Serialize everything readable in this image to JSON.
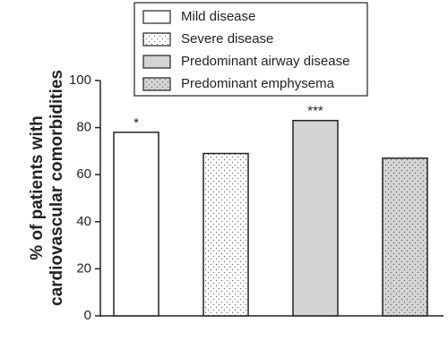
{
  "chart_data": {
    "type": "bar",
    "ylabel": [
      "% of patients with",
      "cardiovascular comorbidities"
    ],
    "categories": [
      "Mild disease",
      "Severe disease",
      "Predominant airway disease",
      "Predominant emphysema"
    ],
    "values": [
      78,
      69,
      83,
      67
    ],
    "annotations": [
      "*",
      null,
      "***",
      null
    ],
    "colors": [
      "#ffffff",
      "#ffffff",
      "#d4d4d4",
      "#d4d4d4"
    ],
    "patterns": [
      "none",
      "dots",
      "none",
      "dots"
    ],
    "ylim": [
      0,
      100
    ],
    "yticks": [
      0,
      20,
      40,
      60,
      80,
      100
    ],
    "legend": "top"
  }
}
